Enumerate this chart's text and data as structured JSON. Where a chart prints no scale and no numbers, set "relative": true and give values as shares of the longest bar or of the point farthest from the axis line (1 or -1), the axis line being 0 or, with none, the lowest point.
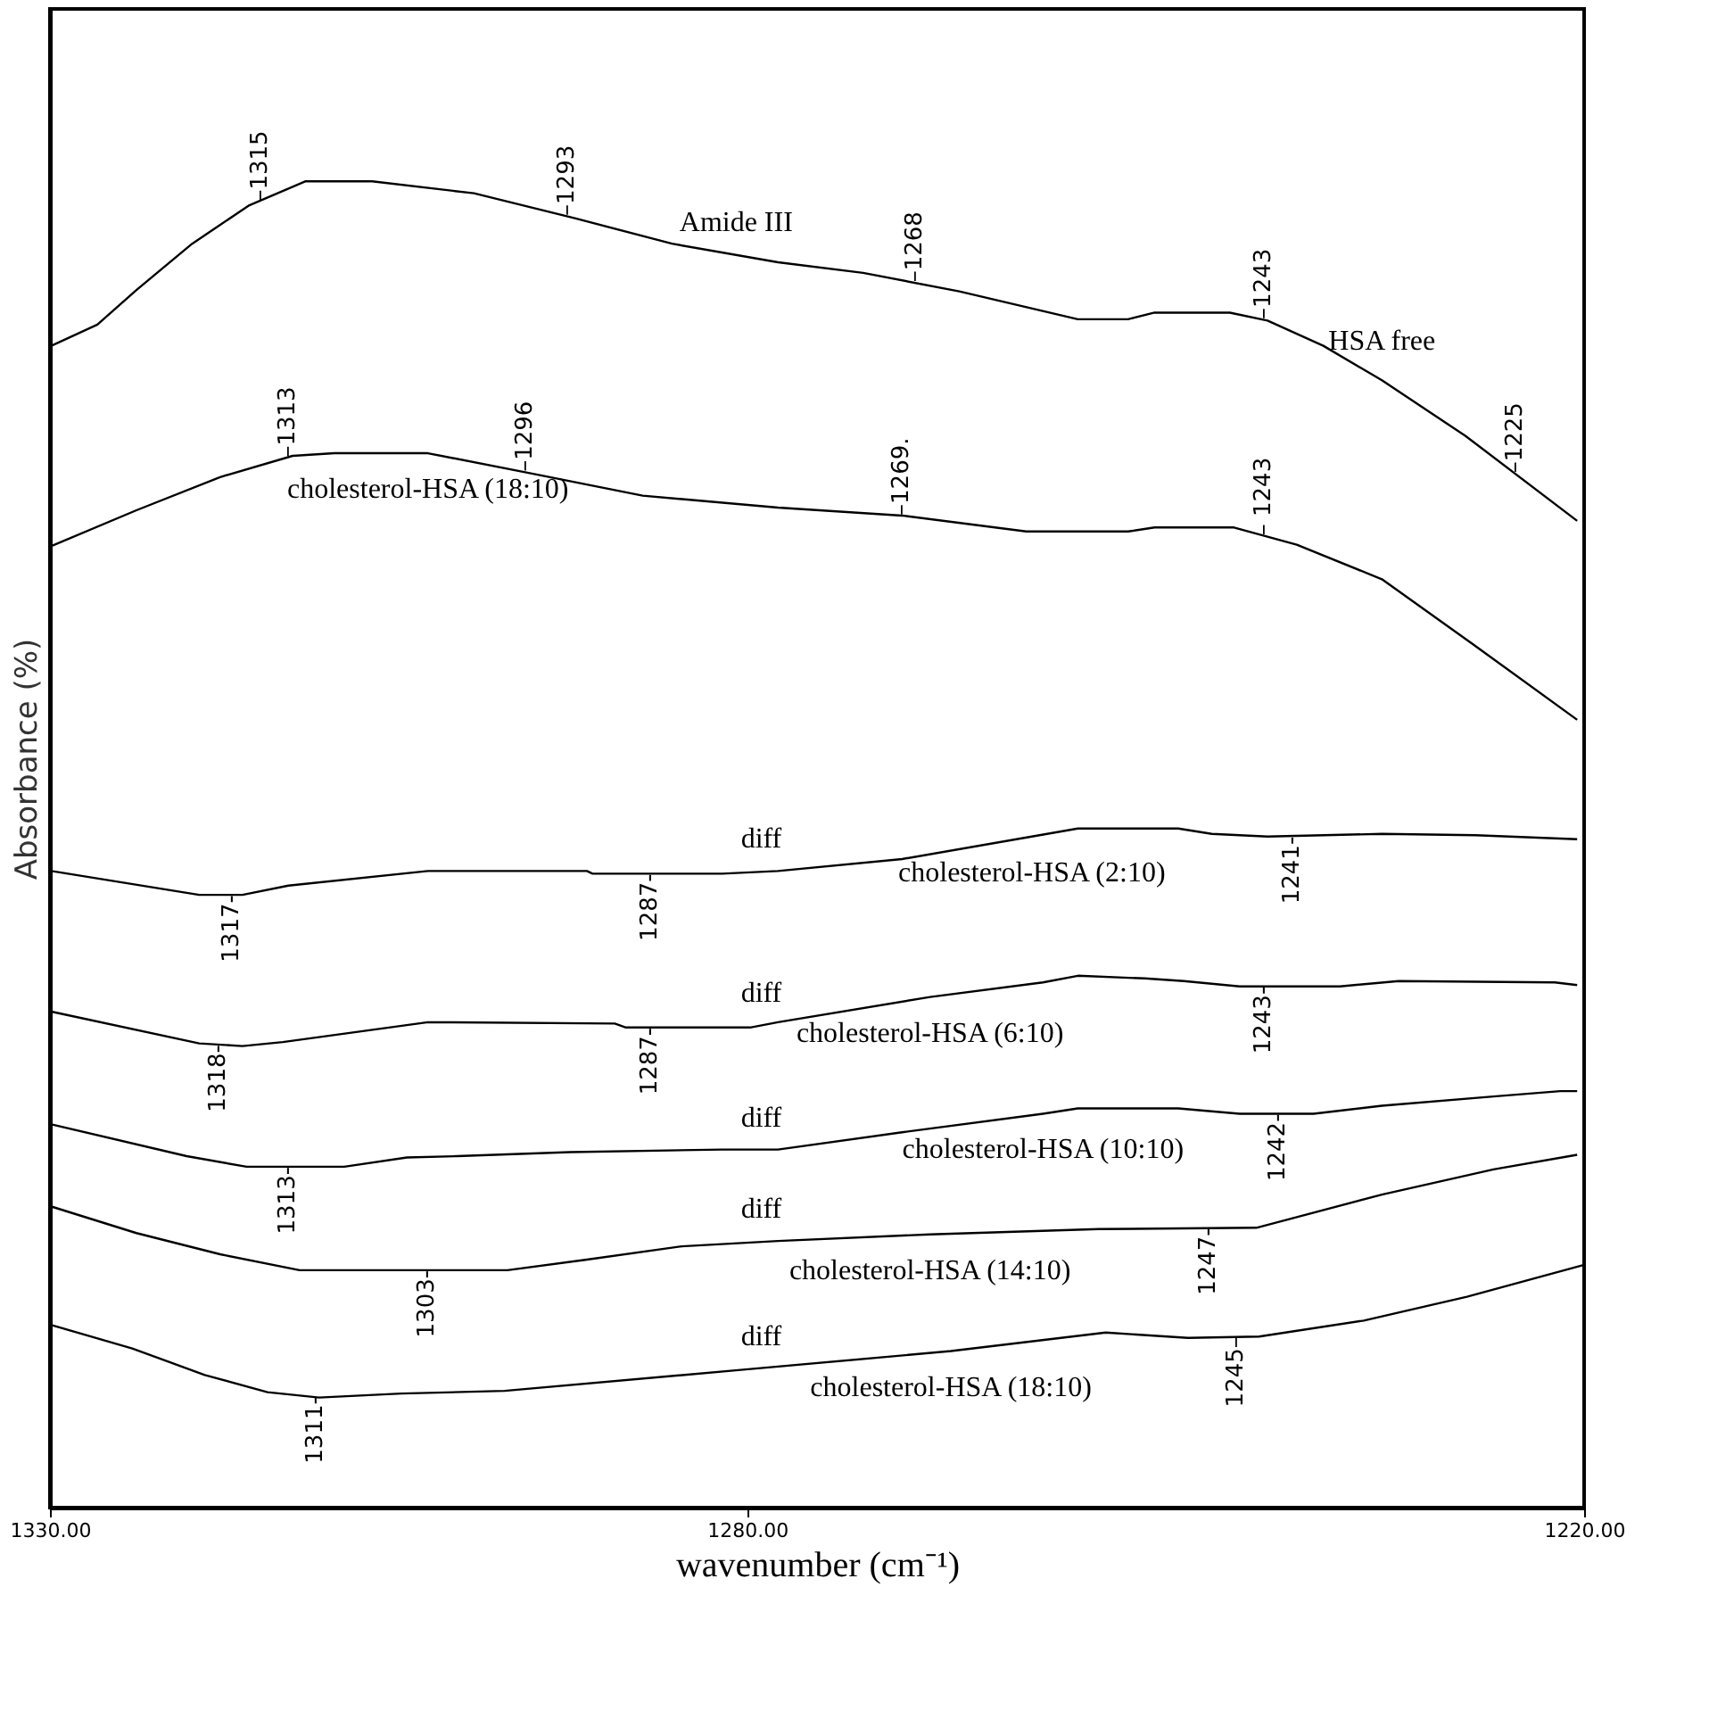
{
  "chart_data": {
    "type": "line",
    "relative": true,
    "xlabel": "wavenumber (cm⁻¹)",
    "ylabel": "Absorbance (%)",
    "xlim": [
      1330,
      1220
    ],
    "xticks": [
      {
        "value": 1330,
        "label": "1330.00"
      },
      {
        "value": 1280,
        "label": "1280.00"
      },
      {
        "value": 1220,
        "label": "1220.00"
      }
    ],
    "grid": false,
    "marker": "none",
    "line_style": "solid",
    "series": [
      {
        "name": "HSA free",
        "color": "#000000",
        "x": [
          1329.9,
          1326.6,
          1323.8,
          1319.8,
          1315.7,
          1311.7,
          1306.9,
          1299.6,
          1292.3,
          1285.4,
          1277.8,
          1271.7,
          1264.8,
          1256.3,
          1252.7,
          1250.8,
          1245.4,
          1242.7,
          1238.7,
          1234.5,
          1228.5,
          1220.5
        ],
        "values": [
          0.876,
          0.892,
          0.918,
          0.953,
          0.982,
          1.0,
          1.0,
          0.991,
          0.972,
          0.953,
          0.939,
          0.931,
          0.917,
          0.896,
          0.896,
          0.901,
          0.901,
          0.895,
          0.876,
          0.85,
          0.808,
          0.744
        ]
      },
      {
        "name": "cholesterol-HSA (18:10)",
        "color": "#000000",
        "x": [
          1329.9,
          1323.8,
          1317.8,
          1312.6,
          1309.6,
          1302.9,
          1295.6,
          1287.5,
          1277.8,
          1268.9,
          1260.0,
          1252.7,
          1250.8,
          1245.1,
          1240.6,
          1234.5,
          1228.1,
          1220.5
        ],
        "values": [
          0.725,
          0.752,
          0.777,
          0.793,
          0.795,
          0.795,
          0.78,
          0.763,
          0.754,
          0.748,
          0.736,
          0.736,
          0.739,
          0.739,
          0.726,
          0.7,
          0.652,
          0.594
        ]
      },
      {
        "name": "cholesterol-HSA (2:10)",
        "color": "#000000",
        "x": [
          1329.9,
          1319.3,
          1316.2,
          1312.9,
          1302.9,
          1291.5,
          1291.1,
          1281.8,
          1277.8,
          1268.9,
          1259.6,
          1256.3,
          1249.1,
          1246.7,
          1242.7,
          1234.5,
          1227.8,
          1220.5
        ],
        "values": [
          0.48,
          0.462,
          0.462,
          0.469,
          0.48,
          0.48,
          0.478,
          0.478,
          0.48,
          0.489,
          0.506,
          0.512,
          0.512,
          0.508,
          0.506,
          0.508,
          0.507,
          0.504
        ]
      },
      {
        "name": "cholesterol-HSA (6:10)",
        "color": "#000000",
        "x": [
          1329.9,
          1319.3,
          1316.2,
          1313.3,
          1302.9,
          1289.5,
          1288.7,
          1279.8,
          1277.8,
          1266.9,
          1258.8,
          1256.3,
          1251.5,
          1248.7,
          1244.7,
          1237.5,
          1233.3,
          1222.1,
          1220.5
        ],
        "values": [
          0.374,
          0.35,
          0.348,
          0.351,
          0.366,
          0.365,
          0.362,
          0.362,
          0.366,
          0.385,
          0.396,
          0.401,
          0.399,
          0.397,
          0.393,
          0.393,
          0.397,
          0.396,
          0.394
        ]
      },
      {
        "name": "cholesterol-HSA (10:10)",
        "color": "#000000",
        "x": [
          1329.9,
          1320.2,
          1315.9,
          1308.9,
          1304.4,
          1300.8,
          1292.7,
          1281.8,
          1277.8,
          1268.9,
          1258.8,
          1256.3,
          1249.1,
          1244.7,
          1239.4,
          1234.5,
          1226.5,
          1221.7,
          1220.5
        ],
        "values": [
          0.289,
          0.265,
          0.257,
          0.257,
          0.264,
          0.265,
          0.268,
          0.27,
          0.27,
          0.283,
          0.297,
          0.301,
          0.301,
          0.297,
          0.297,
          0.303,
          0.31,
          0.314,
          0.314
        ]
      },
      {
        "name": "cholesterol-HSA (14:10)",
        "color": "#000000",
        "x": [
          1329.9,
          1323.8,
          1317.8,
          1312.1,
          1297.2,
          1291.5,
          1284.7,
          1277.8,
          1266.9,
          1254.8,
          1243.5,
          1240.6,
          1234.5,
          1226.5,
          1220.5
        ],
        "values": [
          0.227,
          0.207,
          0.191,
          0.179,
          0.179,
          0.187,
          0.197,
          0.201,
          0.206,
          0.21,
          0.211,
          0.219,
          0.236,
          0.255,
          0.266
        ]
      },
      {
        "name": "cholesterol-HSA (18:10)",
        "color": "#000000",
        "x": [
          1330,
          1324.1,
          1318.9,
          1314.4,
          1310.7,
          1304.8,
          1297.4,
          1280.3,
          1265.4,
          1254.3,
          1248.4,
          1243.3,
          1235.8,
          1228.4,
          1220
        ],
        "values": [
          0.138,
          0.12,
          0.1,
          0.087,
          0.083,
          0.086,
          0.088,
          0.104,
          0.118,
          0.132,
          0.128,
          0.129,
          0.141,
          0.159,
          0.183
        ]
      }
    ],
    "annotations": [
      {
        "text": "–1315",
        "x": 1315,
        "y": 0.985
      },
      {
        "text": "–1293",
        "x": 1293,
        "y": 0.974
      },
      {
        "text": "Amide III",
        "x": 1280.8,
        "y": 0.945
      },
      {
        "text": "–1268",
        "x": 1268,
        "y": 0.924
      },
      {
        "text": "–1243",
        "x": 1243,
        "y": 0.896
      },
      {
        "text": "–1225",
        "x": 1225,
        "y": 0.78
      },
      {
        "text": "–1313",
        "x": 1313,
        "y": 0.792
      },
      {
        "text": "–1296",
        "x": 1296,
        "y": 0.781
      },
      {
        "text": "–1269.",
        "x": 1269,
        "y": 0.748
      },
      {
        "text": "– 1243",
        "x": 1243,
        "y": 0.733
      },
      {
        "text": "diff",
        "x": 1279,
        "y": 0.48
      },
      {
        "text": "1317-",
        "x": 1317,
        "y": 0.462
      },
      {
        "text": "1287-",
        "x": 1287,
        "y": 0.478
      },
      {
        "text": "1241-",
        "x": 1241,
        "y": 0.506
      },
      {
        "text": "diff",
        "x": 1279,
        "y": 0.364
      },
      {
        "text": "1318-",
        "x": 1318,
        "y": 0.349
      },
      {
        "text": "1287-",
        "x": 1287,
        "y": 0.362
      },
      {
        "text": "1243-",
        "x": 1243,
        "y": 0.393
      },
      {
        "text": "diff",
        "x": 1279,
        "y": 0.27
      },
      {
        "text": "1313-",
        "x": 1313,
        "y": 0.257
      },
      {
        "text": "1242-",
        "x": 1242,
        "y": 0.297
      },
      {
        "text": "diff",
        "x": 1279,
        "y": 0.201
      },
      {
        "text": "1303-",
        "x": 1303,
        "y": 0.179
      },
      {
        "text": "1247-",
        "x": 1247,
        "y": 0.211
      },
      {
        "text": "diff",
        "x": 1279,
        "y": 0.105
      },
      {
        "text": "1311-",
        "x": 1311,
        "y": 0.084
      },
      {
        "text": "1245–",
        "x": 1245,
        "y": 0.129
      }
    ]
  }
}
